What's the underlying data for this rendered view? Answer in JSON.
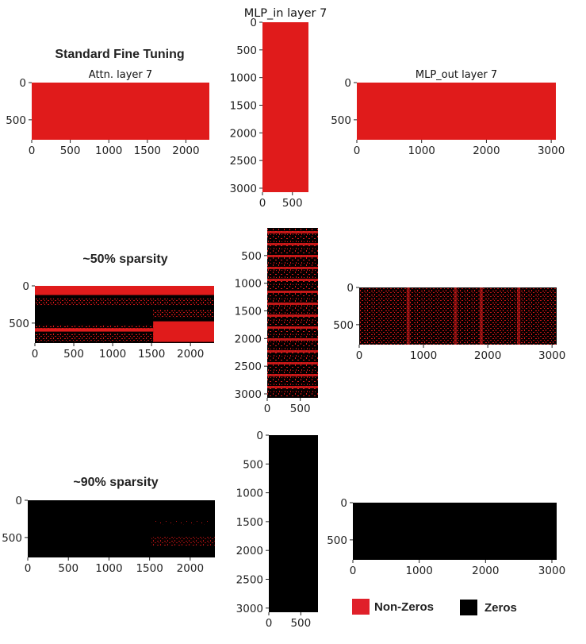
{
  "colors": {
    "nonzero": "#e01b1b",
    "zero": "#000000"
  },
  "row_titles": [
    "Standard Fine Tuning",
    "~50% sparsity",
    "~90% sparsity"
  ],
  "legend": [
    {
      "label": "Non-Zeros",
      "color": "#e0202a"
    },
    {
      "label": "Zeros",
      "color": "#000000"
    }
  ],
  "chart_data": [
    {
      "type": "heatmap",
      "title": "Attn. layer 7",
      "row_title": "Standard Fine Tuning",
      "density": 1.0,
      "xticks": [
        "0",
        "500",
        "1000",
        "1500",
        "2000"
      ],
      "yticks": [
        "0",
        "500"
      ],
      "xlim": [
        0,
        2304
      ],
      "ylim": [
        768,
        0
      ]
    },
    {
      "type": "heatmap",
      "title": "MLP_in layer 7",
      "density": 1.0,
      "xticks": [
        "0",
        "500"
      ],
      "yticks": [
        "0",
        "500",
        "1000",
        "1500",
        "2000",
        "2500",
        "3000"
      ],
      "xlim": [
        0,
        768
      ],
      "ylim": [
        3072,
        0
      ]
    },
    {
      "type": "heatmap",
      "title": "MLP_out layer 7",
      "density": 1.0,
      "xticks": [
        "0",
        "1000",
        "2000",
        "3000"
      ],
      "yticks": [
        "0",
        "500"
      ],
      "xlim": [
        0,
        3072
      ],
      "ylim": [
        768,
        0
      ]
    },
    {
      "type": "heatmap",
      "title": "",
      "row_title": "~50% sparsity",
      "density": 0.5,
      "xticks": [
        "0",
        "500",
        "1000",
        "1500",
        "2000"
      ],
      "yticks": [
        "0",
        "500"
      ],
      "xlim": [
        0,
        2304
      ],
      "ylim": [
        768,
        0
      ]
    },
    {
      "type": "heatmap",
      "title": "",
      "density": 0.5,
      "xticks": [
        "0",
        "500"
      ],
      "yticks": [
        "500",
        "1000",
        "1500",
        "2000",
        "2500",
        "3000"
      ],
      "xlim": [
        0,
        768
      ],
      "ylim": [
        3072,
        0
      ]
    },
    {
      "type": "heatmap",
      "title": "",
      "density": 0.5,
      "xticks": [
        "0",
        "1000",
        "2000",
        "3000"
      ],
      "yticks": [
        "0",
        "500"
      ],
      "xlim": [
        0,
        3072
      ],
      "ylim": [
        768,
        0
      ]
    },
    {
      "type": "heatmap",
      "title": "",
      "row_title": "~90% sparsity",
      "density": 0.1,
      "xticks": [
        "0",
        "500",
        "1000",
        "1500",
        "2000"
      ],
      "yticks": [
        "0",
        "500"
      ],
      "xlim": [
        0,
        2304
      ],
      "ylim": [
        768,
        0
      ]
    },
    {
      "type": "heatmap",
      "title": "",
      "density": 0.1,
      "xticks": [
        "0",
        "500"
      ],
      "yticks": [
        "0",
        "500",
        "1000",
        "1500",
        "2000",
        "2500",
        "3000"
      ],
      "xlim": [
        0,
        768
      ],
      "ylim": [
        3072,
        0
      ]
    },
    {
      "type": "heatmap",
      "title": "",
      "density": 0.1,
      "xticks": [
        "0",
        "1000",
        "2000",
        "3000"
      ],
      "yticks": [
        "0",
        "500"
      ],
      "xlim": [
        0,
        3072
      ],
      "ylim": [
        768,
        0
      ]
    }
  ]
}
